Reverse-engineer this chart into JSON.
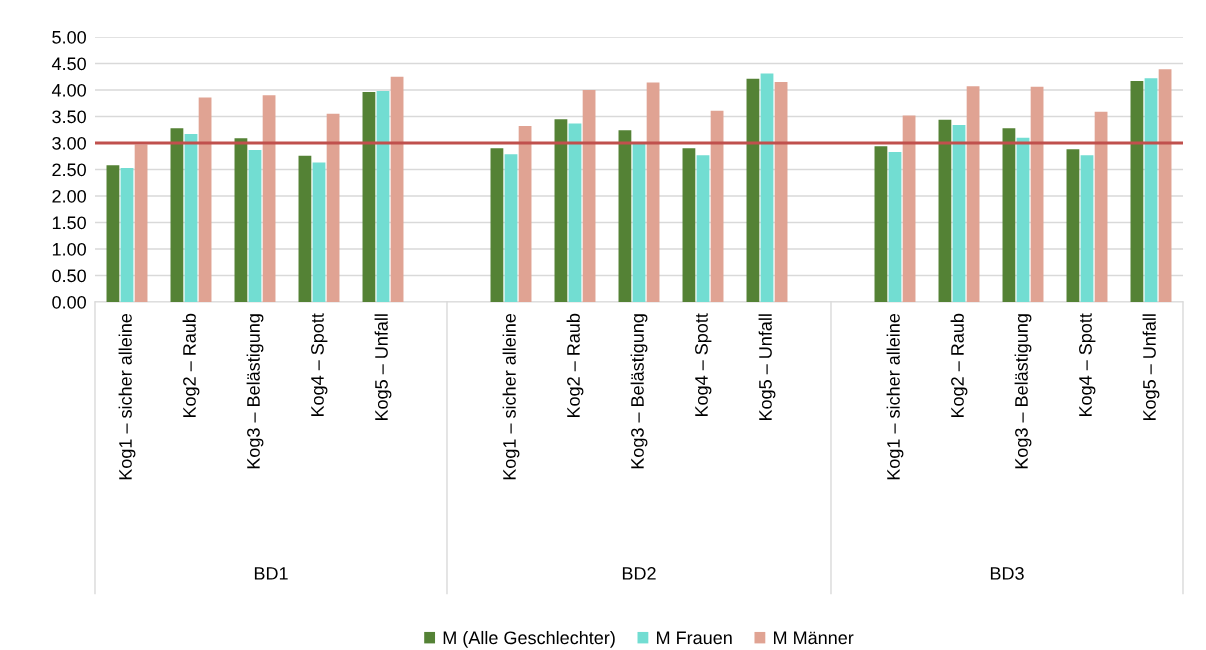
{
  "chart_data": {
    "type": "bar",
    "categories": [
      "Kog1 – sicher alleine",
      "Kog2 – Raub",
      "Kog3 – Belästigung",
      "Kog4 – Spott",
      "Kog5 – Unfall",
      null,
      "Kog1 – sicher alleine",
      "Kog2 – Raub",
      "Kog3 – Belästigung",
      "Kog4 – Spott",
      "Kog5 – Unfall",
      null,
      "Kog1 – sicher alleine",
      "Kog2 – Raub",
      "Kog3 – Belästigung",
      "Kog4 – Spott",
      "Kog5 – Unfall"
    ],
    "series": [
      {
        "name": "M (Alle Geschlechter)",
        "color": "#548235",
        "values": [
          2.58,
          3.28,
          3.09,
          2.76,
          3.96,
          null,
          2.9,
          3.45,
          3.24,
          2.9,
          4.21,
          null,
          2.94,
          3.44,
          3.28,
          2.88,
          4.17
        ]
      },
      {
        "name": "M Frauen",
        "color": "#72ddd2",
        "values": [
          2.53,
          3.17,
          2.87,
          2.63,
          3.98,
          null,
          2.79,
          3.37,
          3.0,
          2.77,
          4.31,
          null,
          2.83,
          3.34,
          3.1,
          2.77,
          4.22
        ]
      },
      {
        "name": "M Männer",
        "color": "#e0a393",
        "values": [
          2.97,
          3.86,
          3.9,
          3.55,
          4.25,
          null,
          3.32,
          4.0,
          4.14,
          3.61,
          4.15,
          null,
          3.52,
          4.07,
          4.06,
          3.59,
          4.39
        ]
      }
    ],
    "ylim": [
      0,
      5
    ],
    "yticks": [
      {
        "value": 0,
        "label": "0.00"
      },
      {
        "value": 0.5,
        "label": "0.50"
      },
      {
        "value": 1,
        "label": "1.00"
      },
      {
        "value": 1.5,
        "label": "1.50"
      },
      {
        "value": 2,
        "label": "2.00"
      },
      {
        "value": 2.5,
        "label": "2.50"
      },
      {
        "value": 3,
        "label": "3.00"
      },
      {
        "value": 3.5,
        "label": "3.50"
      },
      {
        "value": 4,
        "label": "4.00"
      },
      {
        "value": 4.5,
        "label": "4.50"
      },
      {
        "value": 5,
        "label": "5.00"
      }
    ],
    "ref_lines": [
      {
        "axis": "y",
        "value": 3,
        "color": "#c0504d",
        "line_style": "solid"
      }
    ],
    "annotations": [
      "BD1",
      "BD2",
      "BD3"
    ],
    "grid": "y",
    "legend": "bottom"
  }
}
